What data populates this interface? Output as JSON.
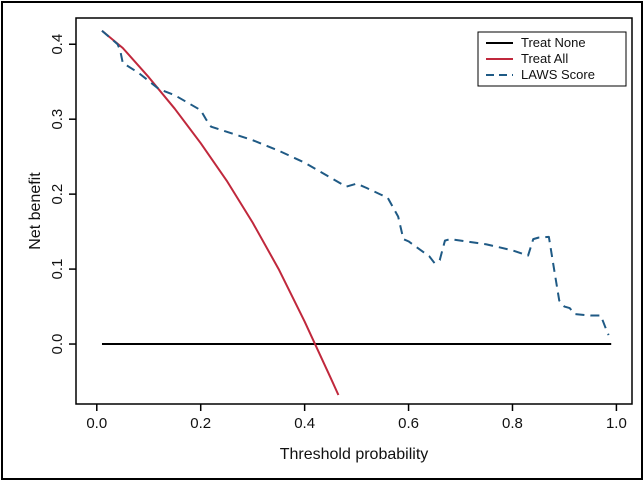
{
  "chart_data": {
    "type": "line",
    "xlabel": "Threshold probability",
    "ylabel": "Net benefit",
    "xlim": [
      -0.04,
      1.03
    ],
    "ylim": [
      -0.08,
      0.435
    ],
    "x_ticks": [
      0.0,
      0.2,
      0.4,
      0.6,
      0.8,
      1.0
    ],
    "x_tick_labels": [
      "0.0",
      "0.2",
      "0.4",
      "0.6",
      "0.8",
      "1.0"
    ],
    "y_ticks": [
      0.0,
      0.1,
      0.2,
      0.3,
      0.4
    ],
    "y_tick_labels": [
      "0.0",
      "0.1",
      "0.2",
      "0.3",
      "0.4"
    ],
    "grid": false,
    "legend_position": "top-right",
    "series": [
      {
        "name": "Treat None",
        "color": "#000000",
        "dash": "solid",
        "x": [
          0.01,
          0.99
        ],
        "y": [
          0.0,
          0.0
        ]
      },
      {
        "name": "Treat All",
        "color": "#c0283c",
        "dash": "solid",
        "x": [
          0.01,
          0.05,
          0.1,
          0.15,
          0.2,
          0.25,
          0.3,
          0.35,
          0.4,
          0.43,
          0.45,
          0.465
        ],
        "y": [
          0.418,
          0.395,
          0.356,
          0.314,
          0.268,
          0.218,
          0.162,
          0.1,
          0.03,
          -0.015,
          -0.045,
          -0.068
        ]
      },
      {
        "name": "LAWS Score",
        "color": "#1f5a85",
        "dash": "dashed",
        "x": [
          0.01,
          0.04,
          0.045,
          0.05,
          0.08,
          0.12,
          0.15,
          0.2,
          0.21,
          0.22,
          0.3,
          0.35,
          0.4,
          0.45,
          0.48,
          0.5,
          0.52,
          0.56,
          0.58,
          0.59,
          0.6,
          0.64,
          0.65,
          0.66,
          0.67,
          0.68,
          0.75,
          0.8,
          0.83,
          0.84,
          0.85,
          0.87,
          0.88,
          0.89,
          0.9,
          0.91,
          0.92,
          0.95,
          0.97,
          0.98,
          0.985
        ],
        "y": [
          0.418,
          0.4,
          0.392,
          0.375,
          0.362,
          0.34,
          0.332,
          0.312,
          0.3,
          0.29,
          0.272,
          0.258,
          0.242,
          0.222,
          0.21,
          0.214,
          0.208,
          0.195,
          0.17,
          0.14,
          0.137,
          0.117,
          0.108,
          0.112,
          0.138,
          0.14,
          0.133,
          0.125,
          0.118,
          0.14,
          0.142,
          0.143,
          0.1,
          0.058,
          0.05,
          0.048,
          0.04,
          0.038,
          0.038,
          0.02,
          0.012
        ]
      }
    ]
  }
}
